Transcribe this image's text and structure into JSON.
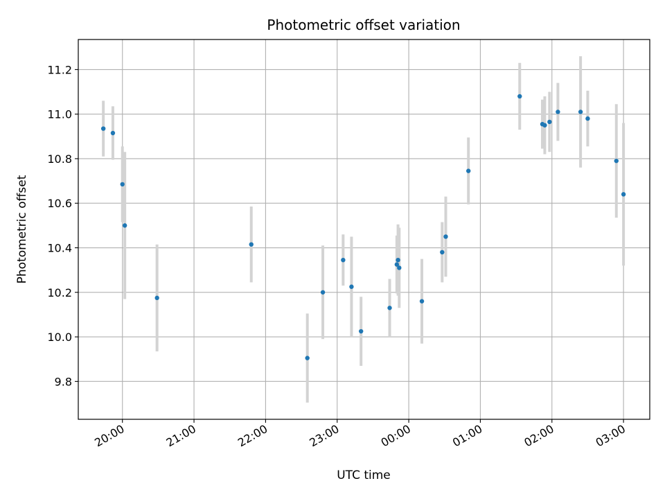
{
  "chart_data": {
    "type": "scatter",
    "title": "Photometric offset variation",
    "xlabel": "UTC time",
    "ylabel": "Photometric offset",
    "x_unit": "UTC time (HH:MM)",
    "xlim": [
      "19:23",
      "03:22"
    ],
    "ylim": [
      9.63,
      11.335
    ],
    "grid": true,
    "xticks": [
      "20:00",
      "21:00",
      "22:00",
      "23:00",
      "00:00",
      "01:00",
      "02:00",
      "03:00"
    ],
    "yticks": [
      9.8,
      10.0,
      10.2,
      10.4,
      10.6,
      10.8,
      11.0,
      11.2
    ],
    "ytick_labels": [
      "9.8",
      "10.0",
      "10.2",
      "10.4",
      "10.6",
      "10.8",
      "11.0",
      "11.2"
    ],
    "point_color": "#1f77b4",
    "errorbar_color": "#d3d3d3",
    "points": [
      {
        "x": "19:44",
        "y": 10.935,
        "yerr": 0.125
      },
      {
        "x": "19:52",
        "y": 10.915,
        "yerr": 0.12
      },
      {
        "x": "20:00",
        "y": 10.685,
        "yerr": 0.17
      },
      {
        "x": "20:02",
        "y": 10.5,
        "yerr": 0.33
      },
      {
        "x": "20:29",
        "y": 10.175,
        "yerr": 0.24
      },
      {
        "x": "21:48",
        "y": 10.415,
        "yerr": 0.17
      },
      {
        "x": "22:35",
        "y": 9.905,
        "yerr": 0.2
      },
      {
        "x": "22:48",
        "y": 10.2,
        "yerr": 0.21
      },
      {
        "x": "23:05",
        "y": 10.345,
        "yerr": 0.115
      },
      {
        "x": "23:12",
        "y": 10.225,
        "yerr": 0.225
      },
      {
        "x": "23:20",
        "y": 10.025,
        "yerr": 0.155
      },
      {
        "x": "23:44",
        "y": 10.13,
        "yerr": 0.13
      },
      {
        "x": "23:50",
        "y": 10.325,
        "yerr": 0.13
      },
      {
        "x": "23:51",
        "y": 10.345,
        "yerr": 0.16
      },
      {
        "x": "23:52",
        "y": 10.31,
        "yerr": 0.18
      },
      {
        "x": "00:11",
        "y": 10.16,
        "yerr": 0.19
      },
      {
        "x": "00:28",
        "y": 10.38,
        "yerr": 0.135
      },
      {
        "x": "00:31",
        "y": 10.45,
        "yerr": 0.18
      },
      {
        "x": "00:50",
        "y": 10.745,
        "yerr": 0.15
      },
      {
        "x": "01:33",
        "y": 11.08,
        "yerr": 0.15
      },
      {
        "x": "01:52",
        "y": 10.955,
        "yerr": 0.11
      },
      {
        "x": "01:54",
        "y": 10.95,
        "yerr": 0.13
      },
      {
        "x": "01:58",
        "y": 10.965,
        "yerr": 0.135
      },
      {
        "x": "02:05",
        "y": 11.01,
        "yerr": 0.13
      },
      {
        "x": "02:24",
        "y": 11.01,
        "yerr": 0.25
      },
      {
        "x": "02:30",
        "y": 10.98,
        "yerr": 0.125
      },
      {
        "x": "02:54",
        "y": 10.79,
        "yerr": 0.255
      },
      {
        "x": "03:00",
        "y": 10.64,
        "yerr": 0.32
      }
    ]
  }
}
